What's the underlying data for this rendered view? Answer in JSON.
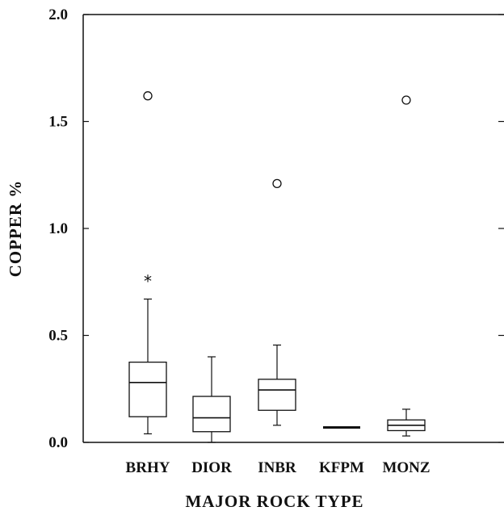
{
  "chart_data": {
    "type": "boxplot",
    "xlabel": "MAJOR ROCK TYPE",
    "ylabel": "COPPER %",
    "ylim": [
      0,
      2.0
    ],
    "yticks": [
      "0.0",
      "0.5",
      "1.0",
      "1.5",
      "2.0"
    ],
    "ytick_values": [
      0,
      0.5,
      1.0,
      1.5,
      2.0
    ],
    "grid": false,
    "categories": [
      "BRHY",
      "DIOR",
      "INBR",
      "KFPM",
      "MONZ"
    ],
    "boxes": [
      {
        "category": "BRHY",
        "whisker_low": 0.04,
        "q1": 0.12,
        "median": 0.28,
        "q3": 0.375,
        "whisker_high": 0.67,
        "far_outliers": [
          1.62
        ],
        "outliers": [
          0.76
        ]
      },
      {
        "category": "DIOR",
        "whisker_low": 0.0,
        "q1": 0.05,
        "median": 0.115,
        "q3": 0.215,
        "whisker_high": 0.4,
        "far_outliers": [],
        "outliers": []
      },
      {
        "category": "INBR",
        "whisker_low": 0.08,
        "q1": 0.15,
        "median": 0.245,
        "q3": 0.295,
        "whisker_high": 0.455,
        "far_outliers": [
          1.21
        ],
        "outliers": []
      },
      {
        "category": "KFPM",
        "whisker_low": 0.07,
        "q1": 0.07,
        "median": 0.07,
        "q3": 0.07,
        "whisker_high": 0.07,
        "far_outliers": [],
        "outliers": []
      },
      {
        "category": "MONZ",
        "whisker_low": 0.03,
        "q1": 0.055,
        "median": 0.08,
        "q3": 0.105,
        "whisker_high": 0.155,
        "far_outliers": [
          1.6
        ],
        "outliers": []
      }
    ]
  }
}
